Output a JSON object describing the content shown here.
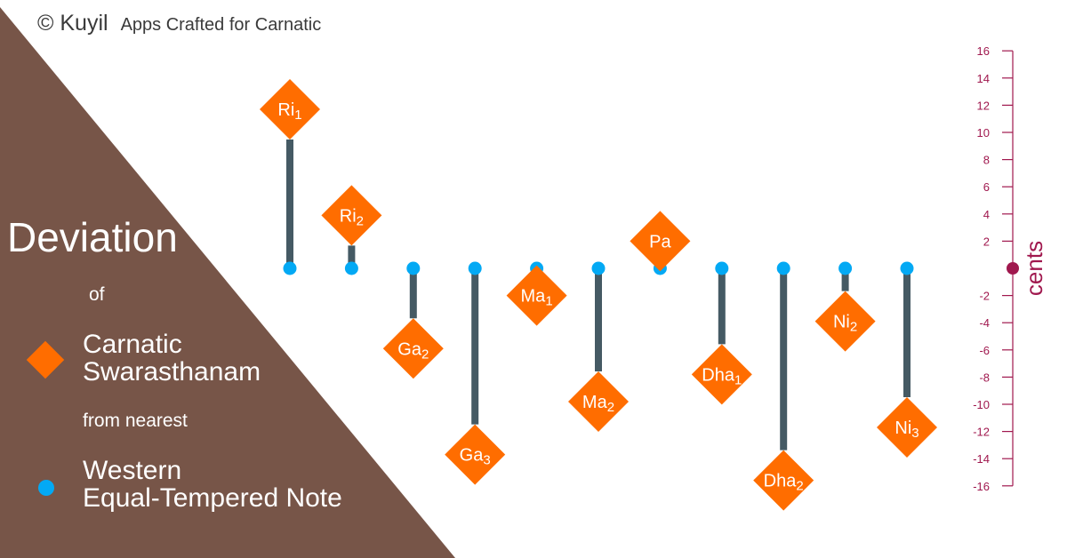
{
  "brand": {
    "logo": "© Kuyil",
    "tagline": "Apps Crafted for Carnatic"
  },
  "legend": {
    "title": "Deviation",
    "of": "of",
    "diamond_line1": "Carnatic",
    "diamond_line2": "Swarasthanam",
    "from": "from nearest",
    "dot_line1": "Western",
    "dot_line2": "Equal-Tempered Note"
  },
  "colors": {
    "panel": "#775548",
    "diamond": "#ff6d00",
    "dot": "#03a9f4",
    "stem": "#455a64",
    "axis": "#a0184e"
  },
  "chart_data": {
    "type": "lollipop",
    "ylabel": "cents",
    "ylim": [
      -16,
      16
    ],
    "yticks": [
      16,
      14,
      12,
      10,
      8,
      6,
      4,
      2,
      -2,
      -4,
      -6,
      -8,
      -10,
      -12,
      -14,
      -16
    ],
    "points": [
      {
        "name": "Ri",
        "sub": "1",
        "value": 11.7
      },
      {
        "name": "Ri",
        "sub": "2",
        "value": 3.9
      },
      {
        "name": "Ga",
        "sub": "2",
        "value": -5.9
      },
      {
        "name": "Ga",
        "sub": "3",
        "value": -13.7
      },
      {
        "name": "Ma",
        "sub": "1",
        "value": -2.0
      },
      {
        "name": "Ma",
        "sub": "2",
        "value": -9.8
      },
      {
        "name": "Pa",
        "sub": "",
        "value": 2.0
      },
      {
        "name": "Dha",
        "sub": "1",
        "value": -7.8
      },
      {
        "name": "Dha",
        "sub": "2",
        "value": -15.6
      },
      {
        "name": "Ni",
        "sub": "2",
        "value": -3.9
      },
      {
        "name": "Ni",
        "sub": "3",
        "value": -11.7
      }
    ]
  }
}
